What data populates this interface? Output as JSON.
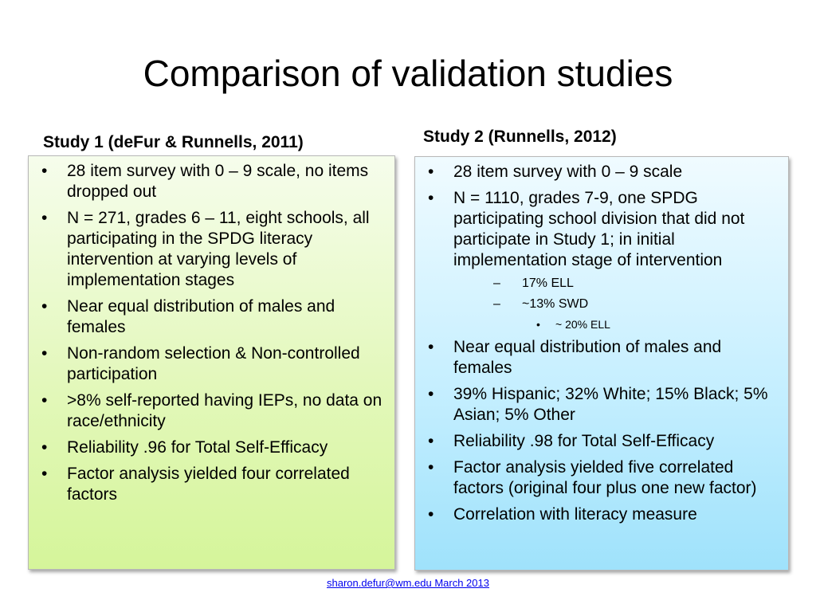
{
  "slide": {
    "title": "Comparison of validation studies",
    "footer": "sharon.defur@wm.edu   March 2013"
  },
  "study1": {
    "heading": "Study 1 (deFur & Runnells, 2011)",
    "bullets": [
      "28 item survey with 0 – 9 scale, no items dropped out",
      "N = 271, grades 6 – 11, eight schools, all participating in the SPDG literacy intervention at varying levels of implementation stages",
      "Near equal distribution of males and females",
      "Non-random selection & Non-controlled participation",
      ">8% self-reported having IEPs, no data on race/ethnicity",
      "Reliability .96 for Total Self-Efficacy",
      "Factor analysis yielded four correlated factors"
    ]
  },
  "study2": {
    "heading": "Study 2 (Runnells, 2012)",
    "bullets": [
      "28 item survey with 0 – 9 scale",
      "N = 1110, grades 7-9, one SPDG participating school division that did not participate in Study 1; in initial implementation stage of intervention",
      "Near equal distribution of males and females",
      "39% Hispanic; 32% White; 15% Black; 5% Asian; 5% Other",
      "Reliability .98 for Total Self-Efficacy",
      "Factor analysis yielded five correlated factors (original four  plus one new factor)",
      "Correlation with literacy measure"
    ],
    "sub_bullets": [
      "17% ELL",
      "~13% SWD"
    ],
    "sub_sub_bullets": [
      "~ 20% ELL"
    ]
  }
}
